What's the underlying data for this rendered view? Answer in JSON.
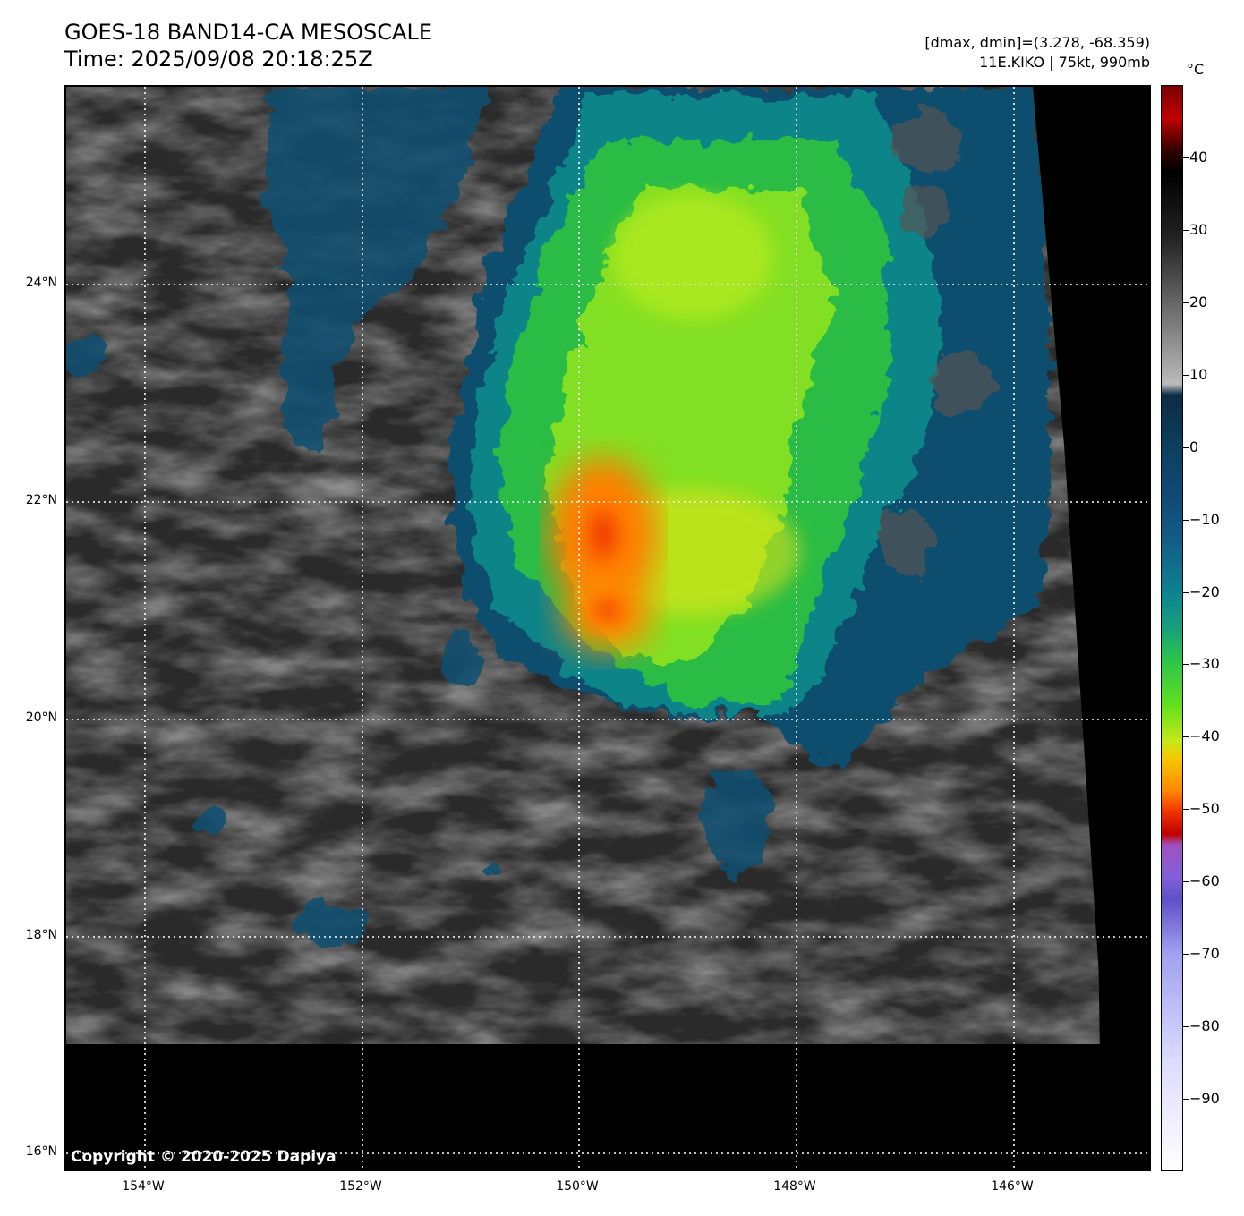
{
  "header": {
    "title": "GOES-18 BAND14-CA MESOSCALE",
    "time": "Time: 2025/09/08 20:18:25Z",
    "range": "[dmax, dmin]=(3.278, -68.359)",
    "storm": "11E.KIKO | 75kt, 990mb"
  },
  "map": {
    "copyright": "Copyright © 2020-2025 Dapiya",
    "lat_labels": [
      "24°N",
      "22°N",
      "20°N",
      "18°N",
      "16°N"
    ],
    "lon_labels": [
      "154°W",
      "152°W",
      "150°W",
      "148°W",
      "146°W"
    ]
  },
  "colorbar": {
    "unit": "°C",
    "tick_labels": [
      "40",
      "30",
      "20",
      "10",
      "0",
      "−10",
      "−20",
      "−30",
      "−40",
      "−50",
      "−60",
      "−70",
      "−80",
      "−90"
    ],
    "ticks": [
      40,
      30,
      20,
      10,
      0,
      -10,
      -20,
      -30,
      -40,
      -50,
      -60,
      -70,
      -80,
      -90
    ],
    "range": [
      -100,
      50
    ]
  }
}
